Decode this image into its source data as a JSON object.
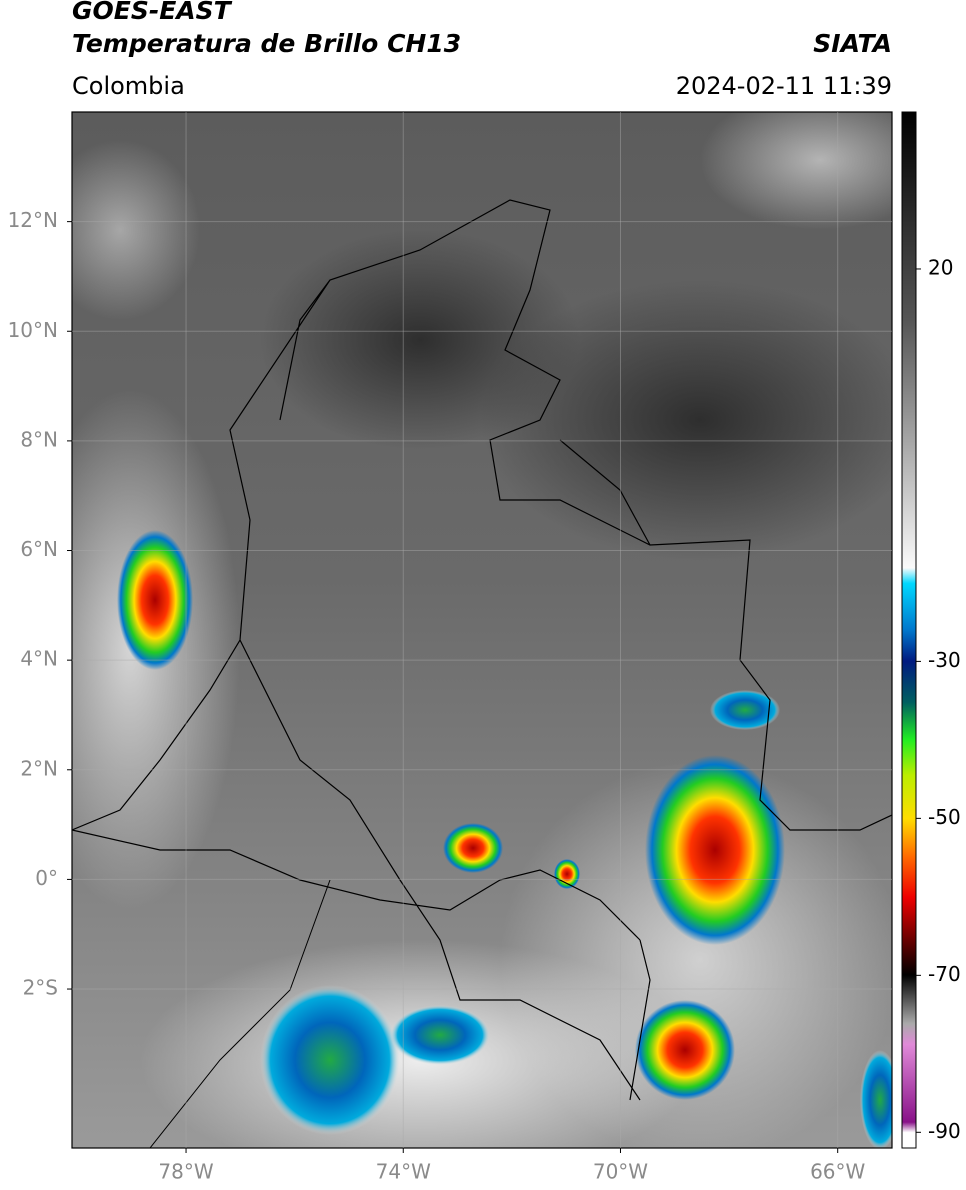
{
  "header": {
    "line1": "GOES-EAST",
    "line2": "Temperatura de Brillo CH13",
    "source": "SIATA",
    "region": "Colombia",
    "datetime": "2024-02-11 11:39"
  },
  "map": {
    "lon_range": [
      -80.1,
      -65
    ],
    "lat_range": [
      -4.9,
      14
    ],
    "lat_ticks": [
      {
        "value": 12,
        "label": "12°N"
      },
      {
        "value": 10,
        "label": "10°N"
      },
      {
        "value": 8,
        "label": "8°N"
      },
      {
        "value": 6,
        "label": "6°N"
      },
      {
        "value": 4,
        "label": "4°N"
      },
      {
        "value": 2,
        "label": "2°N"
      },
      {
        "value": 0,
        "label": "0°"
      },
      {
        "value": -2,
        "label": "2°S"
      }
    ],
    "lon_ticks": [
      {
        "value": -78,
        "label": "78°W"
      },
      {
        "value": -74,
        "label": "74°W"
      },
      {
        "value": -70,
        "label": "70°W"
      },
      {
        "value": -66,
        "label": "66°W"
      }
    ]
  },
  "colorbar": {
    "range": [
      -92,
      40
    ],
    "ticks": [
      20,
      -30,
      -50,
      -70,
      -90
    ]
  }
}
